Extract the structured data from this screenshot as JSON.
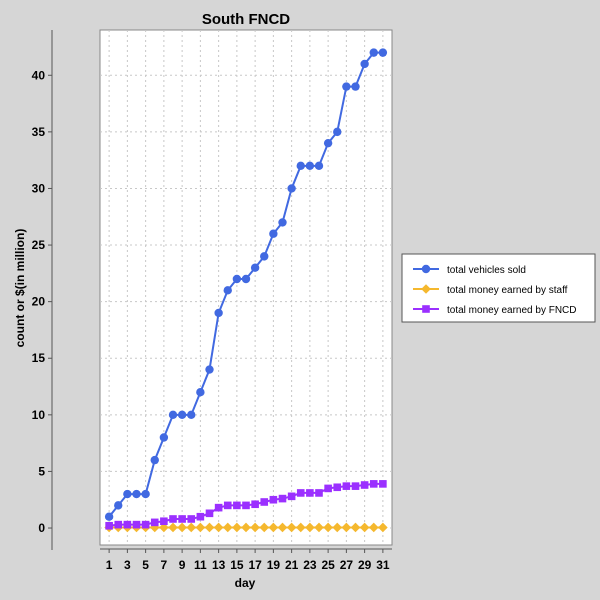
{
  "chart_data": {
    "type": "line",
    "title": "South FNCD",
    "xlabel": "day",
    "ylabel": "count or $(in million)",
    "x": [
      1,
      2,
      3,
      4,
      5,
      6,
      7,
      8,
      9,
      10,
      11,
      12,
      13,
      14,
      15,
      16,
      17,
      18,
      19,
      20,
      21,
      22,
      23,
      24,
      25,
      26,
      27,
      28,
      29,
      30,
      31
    ],
    "xticks": [
      1,
      3,
      5,
      7,
      9,
      11,
      13,
      15,
      17,
      19,
      21,
      23,
      25,
      27,
      29,
      31
    ],
    "yticks": [
      0,
      5,
      10,
      15,
      20,
      25,
      30,
      35,
      40
    ],
    "xlim": [
      0,
      32
    ],
    "ylim": [
      -1.5,
      44
    ],
    "grid": true,
    "legend_position": "right",
    "series": [
      {
        "name": "total vehicles sold",
        "color": "#4169e1",
        "marker": "circle",
        "values": [
          1,
          2,
          3,
          3,
          3,
          6,
          8,
          10,
          10,
          10,
          12,
          14,
          19,
          21,
          22,
          22,
          23,
          24,
          26,
          27,
          30,
          32,
          32,
          32,
          34,
          35,
          39,
          39,
          41,
          42,
          42
        ]
      },
      {
        "name": "total money earned by staff",
        "color": "#f5b82e",
        "marker": "diamond",
        "values": [
          0.05,
          0.05,
          0.05,
          0.05,
          0.05,
          0.05,
          0.05,
          0.05,
          0.05,
          0.05,
          0.05,
          0.05,
          0.05,
          0.05,
          0.05,
          0.05,
          0.05,
          0.05,
          0.05,
          0.05,
          0.05,
          0.05,
          0.05,
          0.05,
          0.05,
          0.05,
          0.05,
          0.05,
          0.05,
          0.05,
          0.05
        ]
      },
      {
        "name": "total money earned by FNCD",
        "color": "#9b30ff",
        "marker": "square",
        "values": [
          0.2,
          0.3,
          0.3,
          0.3,
          0.3,
          0.5,
          0.6,
          0.8,
          0.8,
          0.8,
          1.0,
          1.3,
          1.8,
          2.0,
          2.0,
          2.0,
          2.1,
          2.3,
          2.5,
          2.6,
          2.8,
          3.1,
          3.1,
          3.1,
          3.5,
          3.6,
          3.7,
          3.7,
          3.8,
          3.9,
          3.9
        ]
      }
    ]
  }
}
